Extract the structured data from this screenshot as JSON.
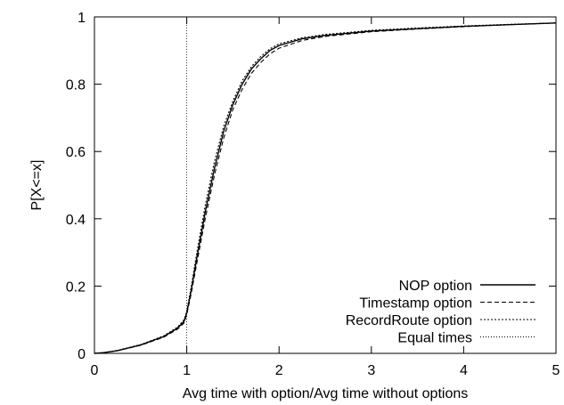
{
  "chart_data": {
    "type": "line",
    "title": "",
    "xlabel": "Avg time with option/Avg time without options",
    "ylabel": "P[X<=x]",
    "xlim": [
      0,
      5
    ],
    "ylim": [
      0,
      1
    ],
    "xticks": [
      0,
      1,
      2,
      3,
      4,
      5
    ],
    "yticks": [
      0,
      0.2,
      0.4,
      0.6,
      0.8,
      1
    ],
    "xtick_labels": [
      "0",
      "1",
      "2",
      "3",
      "4",
      "5"
    ],
    "ytick_labels": [
      "0",
      "0.2",
      "0.4",
      "0.6",
      "0.8",
      "1"
    ],
    "grid": false,
    "legend_position": "bottom-right",
    "series": [
      {
        "name": "NOP option",
        "style": "solid",
        "x": [
          0,
          0.1,
          0.25,
          0.5,
          0.75,
          0.9,
          0.97,
          1.0,
          1.05,
          1.1,
          1.2,
          1.3,
          1.4,
          1.5,
          1.6,
          1.7,
          1.8,
          1.9,
          2.0,
          2.25,
          2.5,
          3.0,
          3.5,
          4.0,
          4.5,
          5.0
        ],
        "y": [
          0,
          0.002,
          0.008,
          0.025,
          0.05,
          0.075,
          0.095,
          0.12,
          0.19,
          0.27,
          0.42,
          0.55,
          0.66,
          0.74,
          0.8,
          0.845,
          0.875,
          0.9,
          0.915,
          0.935,
          0.945,
          0.958,
          0.965,
          0.972,
          0.977,
          0.982
        ]
      },
      {
        "name": "Timestamp option",
        "style": "dashed",
        "x": [
          0,
          0.1,
          0.25,
          0.5,
          0.75,
          0.9,
          0.97,
          1.0,
          1.05,
          1.1,
          1.2,
          1.3,
          1.4,
          1.5,
          1.6,
          1.7,
          1.8,
          1.9,
          2.0,
          2.25,
          2.5,
          3.0,
          3.5,
          4.0,
          4.5,
          5.0
        ],
        "y": [
          0,
          0.002,
          0.008,
          0.024,
          0.048,
          0.072,
          0.09,
          0.115,
          0.18,
          0.255,
          0.4,
          0.53,
          0.64,
          0.725,
          0.785,
          0.832,
          0.864,
          0.89,
          0.907,
          0.93,
          0.942,
          0.956,
          0.964,
          0.971,
          0.977,
          0.982
        ]
      },
      {
        "name": "RecordRoute option",
        "style": "dotted",
        "x": [
          0,
          0.1,
          0.25,
          0.5,
          0.75,
          0.9,
          0.97,
          1.0,
          1.05,
          1.1,
          1.2,
          1.3,
          1.4,
          1.5,
          1.6,
          1.7,
          1.8,
          1.9,
          2.0,
          2.25,
          2.5,
          3.0,
          3.5,
          4.0,
          4.5,
          5.0
        ],
        "y": [
          0,
          0.002,
          0.009,
          0.026,
          0.052,
          0.078,
          0.1,
          0.125,
          0.2,
          0.285,
          0.44,
          0.57,
          0.675,
          0.75,
          0.81,
          0.852,
          0.882,
          0.905,
          0.92,
          0.938,
          0.948,
          0.96,
          0.967,
          0.973,
          0.978,
          0.982
        ]
      }
    ],
    "reference_line": {
      "name": "Equal times",
      "style": "fine-dotted",
      "x": 1
    }
  }
}
